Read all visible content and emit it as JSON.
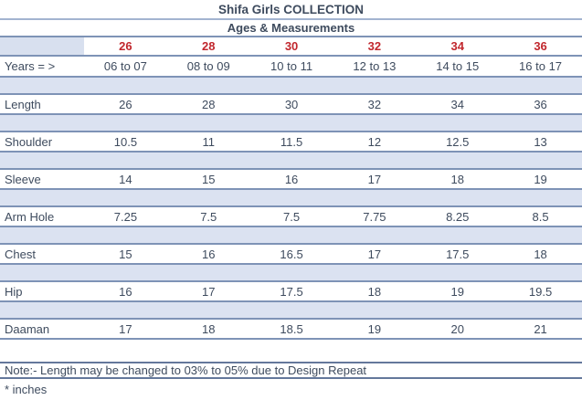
{
  "colors": {
    "accent_red": "#c1272d",
    "line_blue": "#7e93b6",
    "line_blue_light": "#a3b4d0",
    "line_blue_dark": "#64789b",
    "fill_light_blue": "#dbe2f1",
    "header_cell_blue": "#d8e0ef",
    "text_dark": "#3e4b5e"
  },
  "chart_data": {
    "type": "table",
    "title": "Shifa Girls COLLECTION",
    "subtitle": "Ages & Measurements",
    "sizes": [
      "26",
      "28",
      "30",
      "32",
      "34",
      "36"
    ],
    "years_label": "Years = >",
    "years": [
      "06 to 07",
      "08 to 09",
      "10 to 11",
      "12 to 13",
      "14 to 15",
      "16 to 17"
    ],
    "rows": [
      {
        "label": "Length",
        "values": [
          "26",
          "28",
          "30",
          "32",
          "34",
          "36"
        ]
      },
      {
        "label": "Shoulder",
        "values": [
          "10.5",
          "11",
          "11.5",
          "12",
          "12.5",
          "13"
        ]
      },
      {
        "label": "Sleeve",
        "values": [
          "14",
          "15",
          "16",
          "17",
          "18",
          "19"
        ]
      },
      {
        "label": "Arm Hole",
        "values": [
          "7.25",
          "7.5",
          "7.5",
          "7.75",
          "8.25",
          "8.5"
        ]
      },
      {
        "label": "Chest",
        "values": [
          "15",
          "16",
          "16.5",
          "17",
          "17.5",
          "18"
        ]
      },
      {
        "label": "Hip",
        "values": [
          "16",
          "17",
          "17.5",
          "18",
          "19",
          "19.5"
        ]
      },
      {
        "label": "Daaman",
        "values": [
          "17",
          "18",
          "18.5",
          "19",
          "20",
          "21"
        ]
      }
    ],
    "note": "Note:- Length may be changed to 03% to 05% due to Design Repeat",
    "units_note": "* inches"
  }
}
